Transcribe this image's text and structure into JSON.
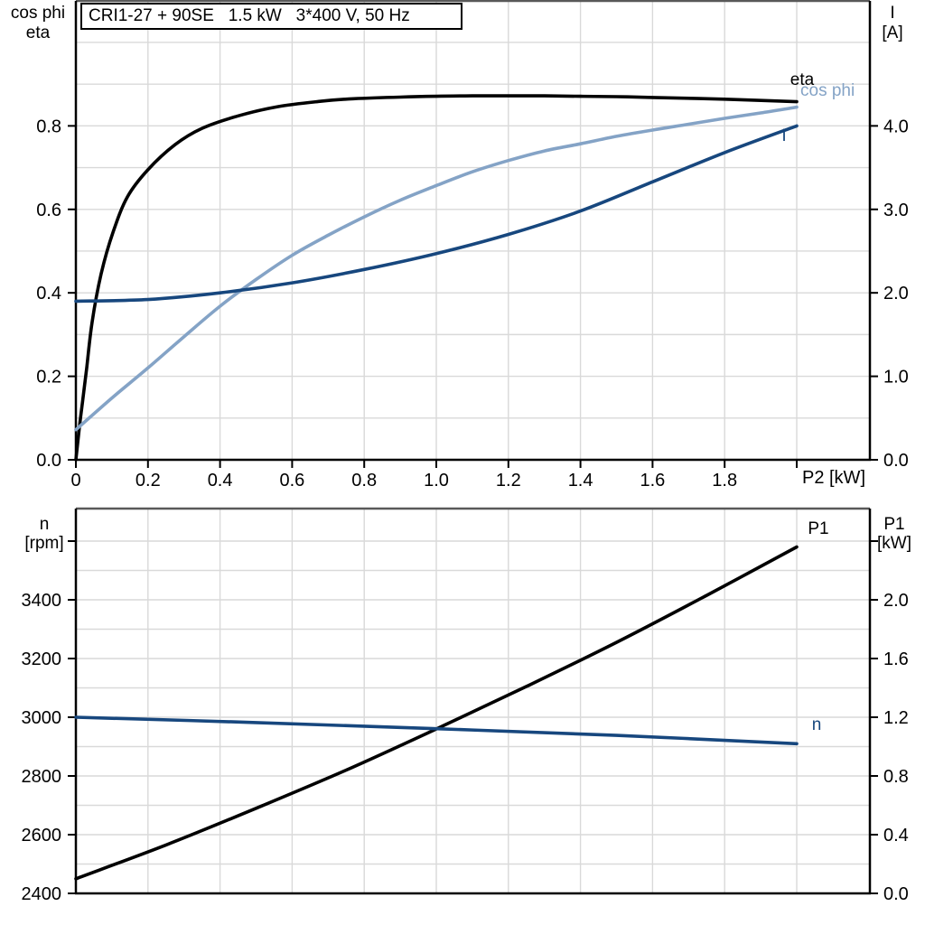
{
  "title": "CRI1-27 + 90SE   1.5 kW   3*400 V, 50 Hz",
  "labels": {
    "top_left": {
      "line1": "cos phi",
      "line2": "eta"
    },
    "top_right": {
      "line1": "I",
      "line2": "[A]"
    },
    "bottom_left": {
      "line1": "n",
      "line2": "[rpm]"
    },
    "bottom_right": {
      "line1": "P1",
      "line2": "[kW]"
    },
    "x_axis": "P2 [kW]"
  },
  "colors": {
    "eta_curve": "#000000",
    "cos_phi_curve": "#84a3c6",
    "current_curve": "#17477e",
    "speed_curve": "#17477e",
    "p1_curve": "#000000",
    "grid": "#d9d9d9",
    "axis": "#000000",
    "panel_top_border": "#595959"
  },
  "chart_data": [
    {
      "type": "line",
      "title": "CRI1-27 + 90SE   1.5 kW   3*400 V, 50 Hz",
      "xlabel": "P2 [kW]",
      "ylabel_left": "cos phi / eta",
      "ylabel_right": "I [A]",
      "x_range": [
        0,
        2.2
      ],
      "y_left_range": [
        0,
        1.1
      ],
      "y_right_range": [
        0,
        5.5
      ],
      "grid": true,
      "legend_position": "curve-end-labels",
      "x_ticks": [
        0,
        0.2,
        0.4,
        0.6,
        0.8,
        1.0,
        1.2,
        1.4,
        1.6,
        1.8,
        2.0
      ],
      "x_tick_labels": [
        "0",
        "0.2",
        "0.4",
        "0.6",
        "0.8",
        "1.0",
        "1.2",
        "1.4",
        "1.6",
        "1.8",
        ""
      ],
      "x_grid": [
        0.2,
        0.4,
        0.6,
        0.8,
        1.0,
        1.2,
        1.4,
        1.6,
        1.8,
        2.0
      ],
      "y_left_ticks": [
        0,
        0.2,
        0.4,
        0.6,
        0.8
      ],
      "y_left_tick_labels": [
        "0.0",
        "0.2",
        "0.4",
        "0.6",
        "0.8"
      ],
      "y_left_grid": [
        0.1,
        0.2,
        0.3,
        0.4,
        0.5,
        0.6,
        0.7,
        0.8,
        0.9,
        1.0
      ],
      "y_right_ticks": [
        0,
        1,
        2,
        3,
        4
      ],
      "y_right_tick_labels": [
        "0.0",
        "1.0",
        "2.0",
        "3.0",
        "4.0"
      ],
      "series": [
        {
          "name": "eta",
          "axis": "left",
          "color": "#000000",
          "x": [
            0,
            0.01,
            0.02,
            0.03,
            0.045,
            0.07,
            0.103,
            0.143,
            0.2,
            0.275,
            0.35,
            0.45,
            0.56,
            0.68,
            0.77,
            0.9,
            1.0,
            1.1,
            1.2,
            1.3,
            1.4,
            1.5,
            1.6,
            1.8,
            2.0
          ],
          "y": [
            0,
            0.08,
            0.15,
            0.22,
            0.33,
            0.445,
            0.545,
            0.63,
            0.695,
            0.755,
            0.794,
            0.824,
            0.846,
            0.859,
            0.865,
            0.869,
            0.871,
            0.872,
            0.872,
            0.872,
            0.871,
            0.87,
            0.868,
            0.864,
            0.858
          ]
        },
        {
          "name": "cos phi",
          "axis": "left",
          "color": "#84a3c6",
          "x": [
            0,
            0.1,
            0.2,
            0.3,
            0.4,
            0.5,
            0.6,
            0.7,
            0.8,
            0.9,
            1.0,
            1.1,
            1.2,
            1.3,
            1.4,
            1.5,
            1.6,
            1.7,
            1.8,
            1.9,
            2.0
          ],
          "y": [
            0.072,
            0.148,
            0.22,
            0.295,
            0.368,
            0.432,
            0.49,
            0.538,
            0.582,
            0.622,
            0.657,
            0.69,
            0.717,
            0.74,
            0.757,
            0.775,
            0.79,
            0.804,
            0.818,
            0.831,
            0.845
          ]
        },
        {
          "name": "I",
          "axis": "right",
          "color": "#17477e",
          "x": [
            0,
            0.2,
            0.4,
            0.6,
            0.8,
            1.0,
            1.2,
            1.4,
            1.6,
            1.8,
            2.0
          ],
          "y": [
            1.9,
            1.92,
            2.0,
            2.12,
            2.28,
            2.47,
            2.7,
            2.98,
            3.33,
            3.68,
            4.0
          ]
        }
      ]
    },
    {
      "type": "line",
      "xlabel": "",
      "ylabel_left": "n [rpm]",
      "ylabel_right": "P1 [kW]",
      "x_range": [
        0,
        2.2
      ],
      "y_left_range": [
        2400,
        3710
      ],
      "y_right_range": [
        0,
        2.62
      ],
      "grid": true,
      "legend_position": "curve-end-labels",
      "x_ticks": [],
      "x_tick_labels": [],
      "x_grid": [
        0.2,
        0.4,
        0.6,
        0.8,
        1.0,
        1.2,
        1.4,
        1.6,
        1.8,
        2.0
      ],
      "y_left_ticks": [
        2400,
        2600,
        2800,
        3000,
        3200,
        3400,
        3600
      ],
      "y_left_tick_labels": [
        "2400",
        "2600",
        "2800",
        "3000",
        "3200",
        "3400",
        ""
      ],
      "y_left_grid": [
        2500,
        2600,
        2700,
        2800,
        2900,
        3000,
        3100,
        3200,
        3300,
        3400,
        3500,
        3600
      ],
      "y_right_ticks": [
        0,
        0.4,
        0.8,
        1.2,
        1.6,
        2.0,
        2.4
      ],
      "y_right_tick_labels": [
        "0.0",
        "0.4",
        "0.8",
        "1.2",
        "1.6",
        "2.0",
        ""
      ],
      "series": [
        {
          "name": "P1",
          "axis": "right",
          "color": "#000000",
          "x": [
            0,
            0.25,
            0.5,
            0.75,
            1.0,
            1.25,
            1.5,
            1.75,
            2.0
          ],
          "y": [
            0.1,
            0.33,
            0.58,
            0.84,
            1.12,
            1.41,
            1.71,
            2.03,
            2.36
          ]
        },
        {
          "name": "n",
          "axis": "left",
          "color": "#17477e",
          "x": [
            0,
            0.5,
            1.0,
            1.5,
            2.0
          ],
          "y": [
            3000,
            2982,
            2961,
            2938,
            2910
          ]
        }
      ]
    }
  ]
}
